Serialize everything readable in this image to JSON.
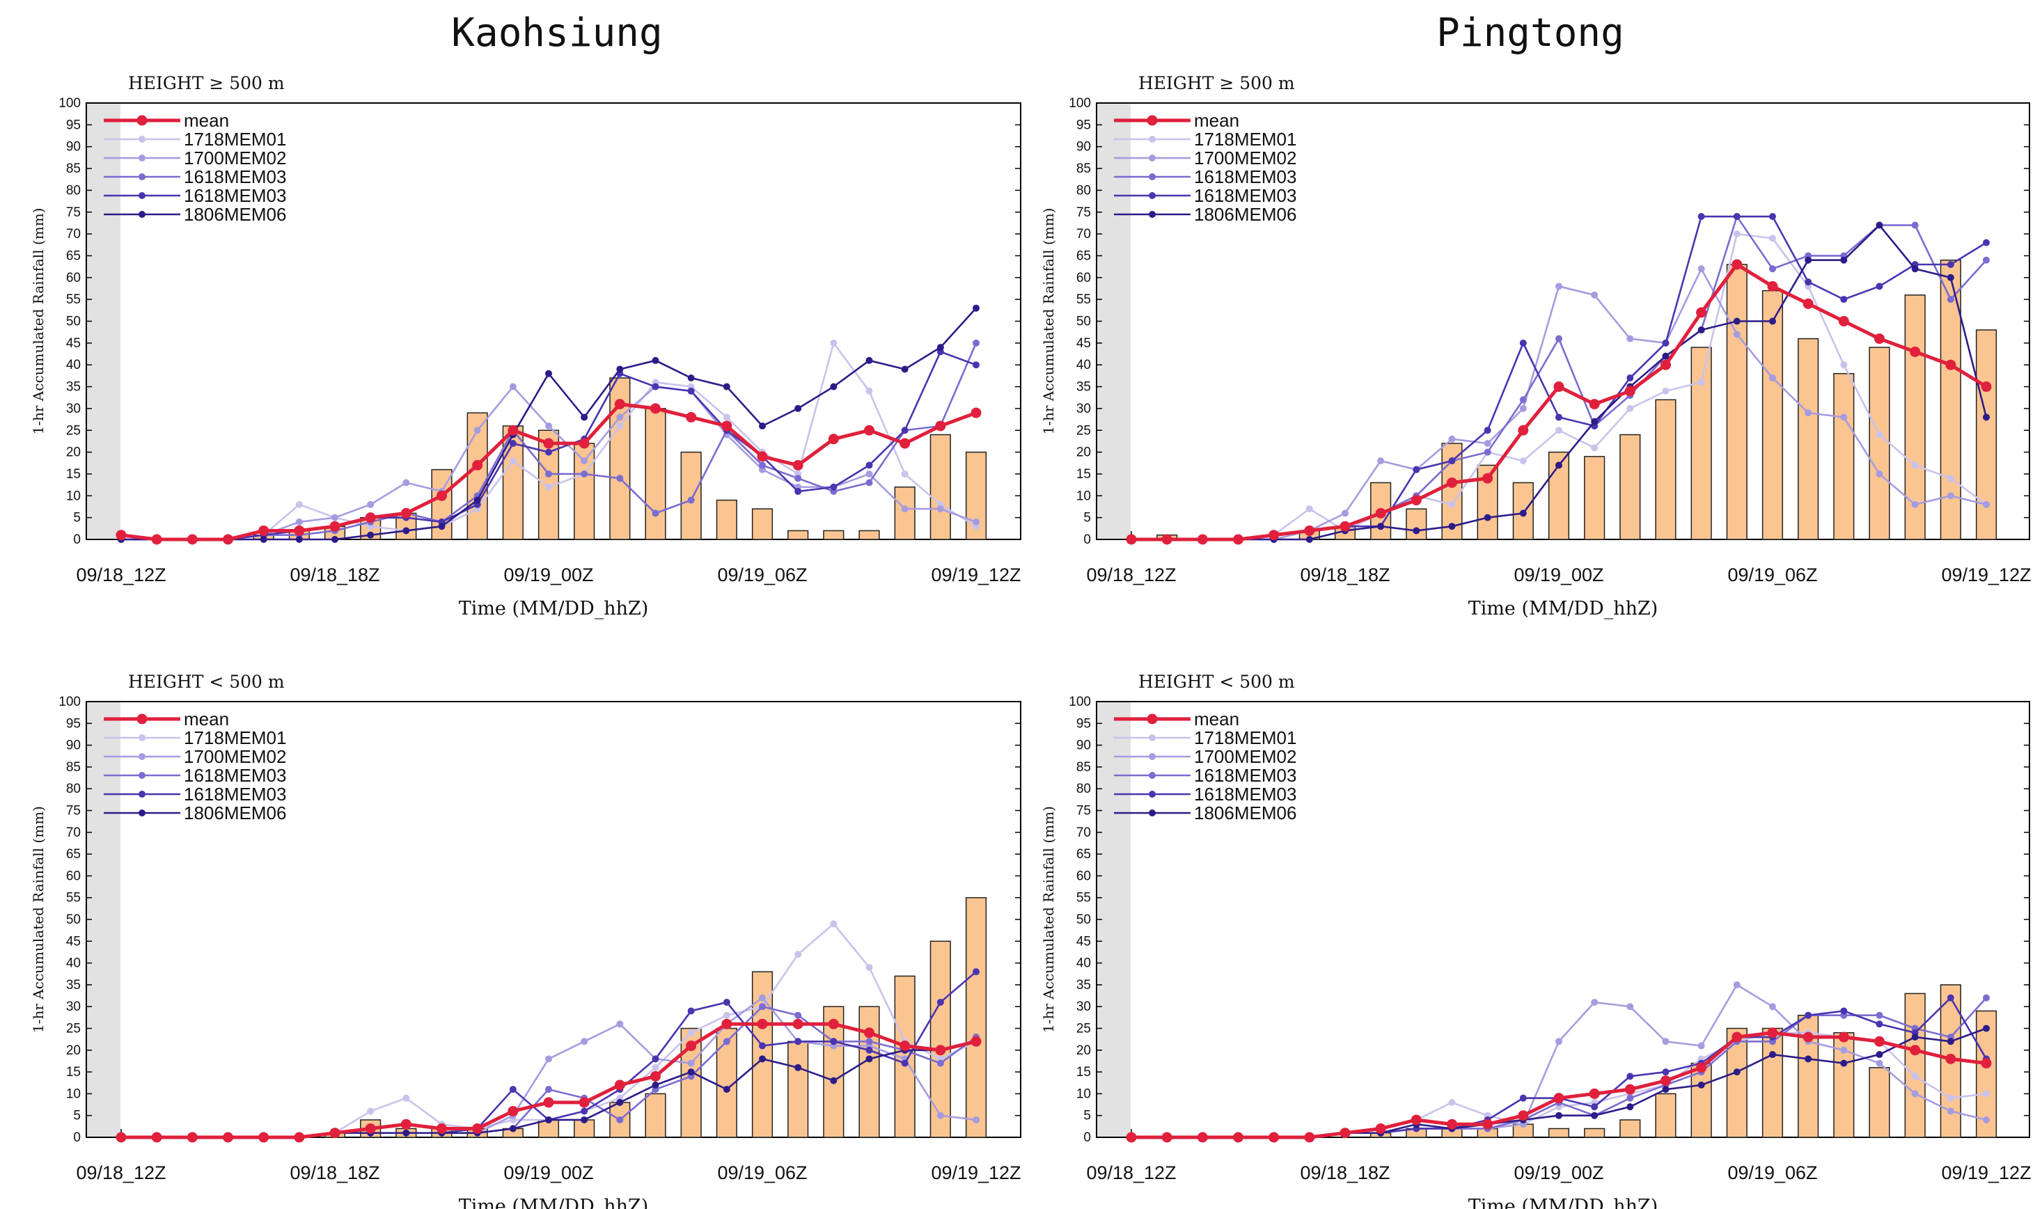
{
  "columns": [
    "Kaohsiung",
    "Pingtong"
  ],
  "common": {
    "ylabel": "1-hr Accumulated Rainfall (mm)",
    "xlabel": "Time (MM/DD_hhZ)",
    "xticks": [
      "09/18_12Z",
      "09/18_18Z",
      "09/19_00Z",
      "09/19_06Z",
      "09/19_12Z"
    ],
    "yticks": [
      "0",
      "5",
      "10",
      "15",
      "20",
      "25",
      "30",
      "35",
      "40",
      "45",
      "50",
      "55",
      "60",
      "65",
      "70",
      "75",
      "80",
      "85",
      "90",
      "95",
      "100"
    ],
    "legend": [
      "mean",
      "1718MEM01",
      "1700MEM02",
      "1618MEM03",
      "1618MEM03",
      "1806MEM06"
    ],
    "colors": {
      "mean": "#e0203c",
      "members": [
        "#c9c3ec",
        "#a59ce0",
        "#7a6cd0",
        "#4a34b0",
        "#2c1c88"
      ],
      "bar": "#fbc592",
      "shade": "#e2e2e2"
    }
  },
  "chart_data": [
    {
      "type": "bar+line",
      "title": "Kaohsiung",
      "subtitle": "HEIGHT ≥ 500 m",
      "xlabel": "Time (MM/DD_hhZ)",
      "ylabel": "1-hr Accumulated Rainfall (mm)",
      "ylim": [
        0,
        100
      ],
      "x_hours": [
        0,
        1,
        2,
        3,
        4,
        5,
        6,
        7,
        8,
        9,
        10,
        11,
        12,
        13,
        14,
        15,
        16,
        17,
        18,
        19,
        20,
        21,
        22,
        23,
        24
      ],
      "bars": [
        0,
        0,
        0,
        0,
        1,
        2,
        3,
        5,
        6,
        16,
        29,
        26,
        25,
        22,
        37,
        30,
        20,
        9,
        7,
        2,
        2,
        2,
        12,
        24,
        20
      ],
      "mean": [
        1,
        0,
        0,
        0,
        2,
        2,
        3,
        5,
        6,
        10,
        17,
        25,
        22,
        22,
        31,
        30,
        28,
        26,
        19,
        17,
        23,
        25,
        22,
        26,
        29
      ],
      "members": [
        {
          "name": "1718MEM01",
          "values": [
            0,
            0,
            0,
            0,
            1,
            8,
            5,
            3,
            2,
            3,
            7,
            18,
            12,
            15,
            26,
            36,
            35,
            28,
            20,
            15,
            45,
            34,
            15,
            8,
            3
          ]
        },
        {
          "name": "1700MEM02",
          "values": [
            0,
            0,
            0,
            0,
            1,
            4,
            5,
            8,
            13,
            11,
            25,
            35,
            26,
            18,
            28,
            35,
            34,
            24,
            16,
            12,
            12,
            15,
            7,
            7,
            4
          ]
        },
        {
          "name": "1618MEM03",
          "values": [
            0,
            0,
            0,
            0,
            1,
            1,
            2,
            4,
            6,
            4,
            10,
            25,
            15,
            15,
            14,
            6,
            9,
            25,
            17,
            14,
            11,
            13,
            25,
            26,
            45
          ]
        },
        {
          "name": "1618MEM03",
          "values": [
            1,
            0,
            0,
            0,
            1,
            2,
            3,
            5,
            5,
            4,
            8,
            22,
            20,
            23,
            38,
            35,
            34,
            25,
            19,
            11,
            12,
            17,
            25,
            43,
            40
          ]
        },
        {
          "name": "1806MEM06",
          "values": [
            0,
            0,
            0,
            0,
            0,
            0,
            0,
            1,
            2,
            3,
            9,
            24,
            38,
            28,
            39,
            41,
            37,
            35,
            26,
            30,
            35,
            41,
            39,
            44,
            53
          ]
        }
      ]
    },
    {
      "type": "bar+line",
      "title": "Pingtong",
      "subtitle": "HEIGHT ≥ 500 m",
      "xlabel": "Time (MM/DD_hhZ)",
      "ylabel": "1-hr Accumulated Rainfall (mm)",
      "ylim": [
        0,
        100
      ],
      "x_hours": [
        0,
        1,
        2,
        3,
        4,
        5,
        6,
        7,
        8,
        9,
        10,
        11,
        12,
        13,
        14,
        15,
        16,
        17,
        18,
        19,
        20,
        21,
        22,
        23,
        24
      ],
      "bars": [
        0,
        1,
        0,
        0,
        0,
        2,
        3,
        13,
        7,
        22,
        17,
        13,
        20,
        19,
        24,
        32,
        44,
        63,
        57,
        46,
        38,
        44,
        56,
        64,
        48
      ],
      "mean": [
        0,
        0,
        0,
        0,
        1,
        2,
        3,
        6,
        9,
        13,
        14,
        25,
        35,
        31,
        34,
        40,
        52,
        63,
        58,
        54,
        50,
        46,
        43,
        40,
        35
      ],
      "members": [
        {
          "name": "1718MEM01",
          "values": [
            0,
            0,
            0,
            0,
            1,
            7,
            2,
            6,
            10,
            8,
            20,
            18,
            25,
            21,
            30,
            34,
            36,
            70,
            69,
            58,
            40,
            24,
            17,
            14,
            8
          ]
        },
        {
          "name": "1700MEM02",
          "values": [
            0,
            0,
            0,
            0,
            0,
            2,
            6,
            18,
            16,
            23,
            22,
            30,
            58,
            56,
            46,
            45,
            62,
            47,
            37,
            29,
            28,
            15,
            8,
            10,
            8
          ]
        },
        {
          "name": "1618MEM03",
          "values": [
            0,
            0,
            0,
            0,
            1,
            2,
            3,
            6,
            10,
            18,
            20,
            32,
            46,
            26,
            33,
            42,
            48,
            74,
            62,
            65,
            65,
            72,
            72,
            55,
            64
          ]
        },
        {
          "name": "1618MEM03",
          "values": [
            0,
            0,
            0,
            0,
            1,
            2,
            3,
            3,
            16,
            18,
            25,
            45,
            28,
            26,
            37,
            45,
            74,
            74,
            74,
            59,
            55,
            58,
            63,
            63,
            68
          ]
        },
        {
          "name": "1806MEM06",
          "values": [
            0,
            0,
            0,
            0,
            0,
            0,
            2,
            3,
            2,
            3,
            5,
            6,
            17,
            27,
            35,
            42,
            48,
            50,
            50,
            64,
            64,
            72,
            62,
            60,
            28
          ]
        }
      ]
    },
    {
      "type": "bar+line",
      "title": "Kaohsiung",
      "subtitle": "HEIGHT < 500 m",
      "xlabel": "Time (MM/DD_hhZ)",
      "ylabel": "1-hr Accumulated Rainfall (mm)",
      "ylim": [
        0,
        100
      ],
      "x_hours": [
        0,
        1,
        2,
        3,
        4,
        5,
        6,
        7,
        8,
        9,
        10,
        11,
        12,
        13,
        14,
        15,
        16,
        17,
        18,
        19,
        20,
        21,
        22,
        23,
        24
      ],
      "bars": [
        0,
        0,
        0,
        0,
        0,
        0,
        1,
        4,
        2,
        2,
        2,
        2,
        4,
        4,
        8,
        10,
        25,
        25,
        38,
        22,
        30,
        30,
        37,
        45,
        55
      ],
      "mean": [
        0,
        0,
        0,
        0,
        0,
        0,
        1,
        2,
        3,
        2,
        2,
        6,
        8,
        8,
        12,
        14,
        21,
        26,
        26,
        26,
        26,
        24,
        21,
        20,
        22
      ],
      "members": [
        {
          "name": "1718MEM01",
          "values": [
            0,
            0,
            0,
            0,
            0,
            0,
            1,
            6,
            9,
            3,
            2,
            4,
            4,
            6,
            9,
            16,
            24,
            28,
            30,
            42,
            49,
            39,
            22,
            18,
            22
          ]
        },
        {
          "name": "1700MEM02",
          "values": [
            0,
            0,
            0,
            0,
            0,
            0,
            1,
            1,
            1,
            1,
            1,
            5,
            18,
            22,
            26,
            18,
            17,
            26,
            32,
            22,
            21,
            21,
            18,
            5,
            4
          ]
        },
        {
          "name": "1618MEM03",
          "values": [
            0,
            0,
            0,
            0,
            0,
            0,
            1,
            1,
            1,
            1,
            1,
            2,
            11,
            9,
            4,
            11,
            14,
            22,
            30,
            28,
            22,
            22,
            20,
            17,
            23
          ]
        },
        {
          "name": "1618MEM03",
          "values": [
            0,
            0,
            0,
            0,
            0,
            0,
            1,
            1,
            1,
            1,
            2,
            11,
            4,
            6,
            11,
            18,
            29,
            31,
            21,
            22,
            22,
            20,
            17,
            31,
            38
          ]
        },
        {
          "name": "1806MEM06",
          "values": [
            0,
            0,
            0,
            0,
            0,
            0,
            1,
            1,
            1,
            1,
            1,
            2,
            4,
            4,
            8,
            12,
            15,
            11,
            18,
            16,
            13,
            18,
            20,
            20,
            22
          ]
        }
      ]
    },
    {
      "type": "bar+line",
      "title": "Pingtong",
      "subtitle": "HEIGHT < 500 m",
      "xlabel": "Time (MM/DD_hhZ)",
      "ylabel": "1-hr Accumulated Rainfall (mm)",
      "ylim": [
        0,
        100
      ],
      "x_hours": [
        0,
        1,
        2,
        3,
        4,
        5,
        6,
        7,
        8,
        9,
        10,
        11,
        12,
        13,
        14,
        15,
        16,
        17,
        18,
        19,
        20,
        21,
        22,
        23,
        24
      ],
      "bars": [
        0,
        0,
        0,
        0,
        0,
        0,
        0,
        1,
        2,
        2,
        2,
        3,
        2,
        2,
        4,
        10,
        17,
        25,
        25,
        28,
        24,
        16,
        33,
        35,
        29
      ],
      "mean": [
        0,
        0,
        0,
        0,
        0,
        0,
        1,
        2,
        4,
        3,
        3,
        5,
        9,
        10,
        11,
        13,
        16,
        23,
        24,
        23,
        23,
        22,
        20,
        18,
        17
      ],
      "members": [
        {
          "name": "1718MEM01",
          "values": [
            0,
            0,
            0,
            0,
            0,
            0,
            1,
            2,
            4,
            8,
            5,
            3,
            7,
            8,
            10,
            12,
            18,
            22,
            24,
            24,
            23,
            22,
            14,
            9,
            10
          ]
        },
        {
          "name": "1700MEM02",
          "values": [
            0,
            0,
            0,
            0,
            0,
            0,
            1,
            1,
            2,
            2,
            2,
            3,
            22,
            31,
            30,
            22,
            21,
            35,
            30,
            22,
            20,
            17,
            10,
            6,
            4
          ]
        },
        {
          "name": "1618MEM03",
          "values": [
            0,
            0,
            0,
            0,
            0,
            0,
            1,
            1,
            2,
            2,
            2,
            4,
            8,
            5,
            9,
            12,
            15,
            22,
            22,
            28,
            28,
            28,
            25,
            23,
            32
          ]
        },
        {
          "name": "1618MEM03",
          "values": [
            0,
            0,
            0,
            0,
            0,
            0,
            1,
            1,
            2,
            2,
            4,
            9,
            9,
            7,
            14,
            15,
            17,
            23,
            23,
            28,
            29,
            26,
            24,
            32,
            18
          ]
        },
        {
          "name": "1806MEM06",
          "values": [
            0,
            0,
            0,
            0,
            0,
            0,
            1,
            1,
            3,
            2,
            3,
            4,
            5,
            5,
            7,
            11,
            12,
            15,
            19,
            18,
            17,
            19,
            23,
            22,
            25
          ]
        }
      ]
    }
  ]
}
